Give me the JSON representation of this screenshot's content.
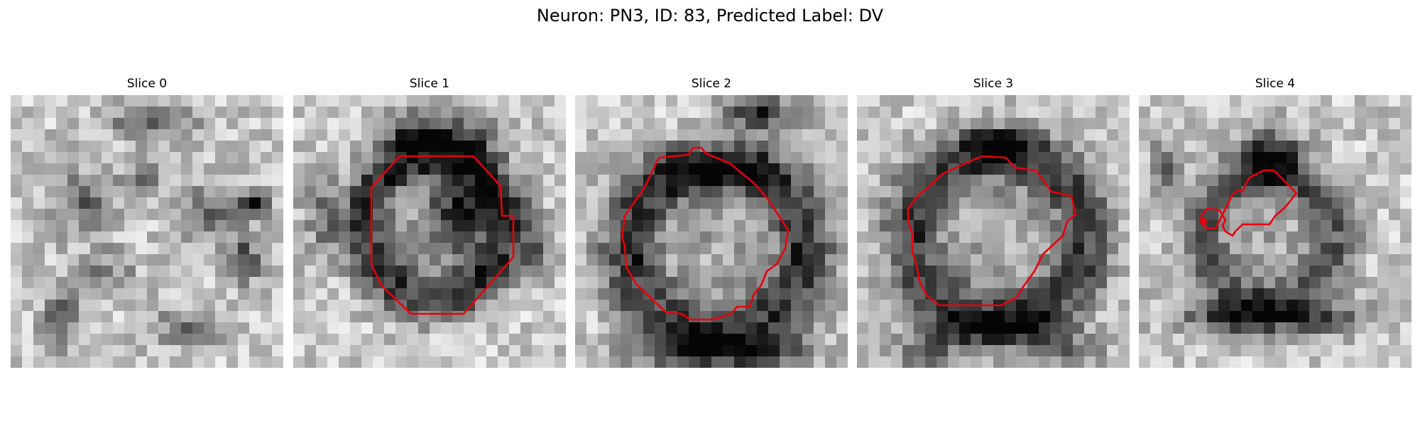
{
  "figure": {
    "title": "Neuron: PN3, ID: 83, Predicted Label: DV"
  },
  "contour_color": "#e8000b",
  "panels": [
    {
      "title": "Slice 0",
      "has_contour": false
    },
    {
      "title": "Slice 1",
      "has_contour": true
    },
    {
      "title": "Slice 2",
      "has_contour": true
    },
    {
      "title": "Slice 3",
      "has_contour": true
    },
    {
      "title": "Slice 4",
      "has_contour": true
    }
  ]
}
